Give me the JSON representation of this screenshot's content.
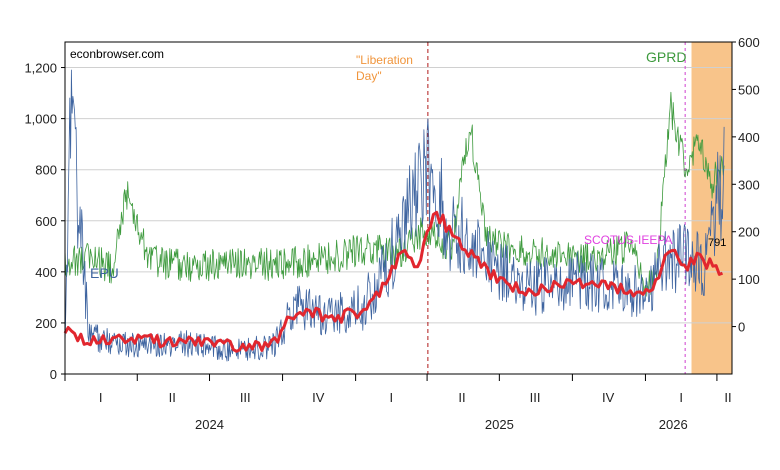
{
  "chart_data": {
    "type": "line",
    "watermark": "econbrowser.com",
    "x_axis": {
      "quarter_ticks": [
        {
          "label": "I",
          "date": "2024-02-15"
        },
        {
          "label": "II",
          "date": "2024-05-15"
        },
        {
          "label": "III",
          "date": "2024-08-15"
        },
        {
          "label": "IV",
          "date": "2024-11-15"
        },
        {
          "label": "I",
          "date": "2025-02-15"
        },
        {
          "label": "II",
          "date": "2025-05-15"
        },
        {
          "label": "III",
          "date": "2025-08-15"
        },
        {
          "label": "IV",
          "date": "2025-11-15"
        },
        {
          "label": "I",
          "date": "2026-02-15"
        },
        {
          "label": "II",
          "date": "2026-04-15"
        }
      ],
      "year_labels": [
        {
          "label": "2024",
          "date": "2024-07-01"
        },
        {
          "label": "2025",
          "date": "2025-07-01"
        },
        {
          "label": "2026",
          "date": "2026-02-05"
        }
      ],
      "range": [
        "2024-01-01",
        "2026-04-20"
      ]
    },
    "left_axis": {
      "ticks": [
        "0",
        "200",
        "400",
        "600",
        "800",
        "1,000",
        "1,200"
      ],
      "range": [
        0,
        1300
      ]
    },
    "right_axis": {
      "ticks": [
        "0",
        "100",
        "200",
        "300",
        "400",
        "500",
        "600"
      ],
      "range": [
        -100,
        600
      ]
    },
    "series": [
      {
        "name": "GPRD",
        "axis": "right",
        "color": "#3d9a3d",
        "points": [
          [
            "2024-01-01",
            130
          ],
          [
            "2024-02-01",
            150
          ],
          [
            "2024-03-01",
            120
          ],
          [
            "2024-03-20",
            290
          ],
          [
            "2024-04-15",
            140
          ],
          [
            "2024-06-01",
            125
          ],
          [
            "2024-08-01",
            135
          ],
          [
            "2024-10-01",
            130
          ],
          [
            "2024-12-01",
            145
          ],
          [
            "2025-01-15",
            165
          ],
          [
            "2025-02-20",
            150
          ],
          [
            "2025-03-30",
            205
          ],
          [
            "2025-05-01",
            165
          ],
          [
            "2025-05-25",
            430
          ],
          [
            "2025-06-15",
            180
          ],
          [
            "2025-09-01",
            150
          ],
          [
            "2025-11-01",
            140
          ],
          [
            "2025-12-15",
            175
          ],
          [
            "2026-01-01",
            90
          ],
          [
            "2026-01-15",
            110
          ],
          [
            "2026-02-01",
            470
          ],
          [
            "2026-02-20",
            340
          ],
          [
            "2026-03-10",
            390
          ],
          [
            "2026-03-25",
            300
          ],
          [
            "2026-04-10",
            340
          ]
        ]
      },
      {
        "name": "EPU",
        "axis": "left",
        "color": "#3e64a0",
        "points": [
          [
            "2024-01-01",
            120
          ],
          [
            "2024-01-08",
            1000
          ],
          [
            "2024-02-01",
            140
          ],
          [
            "2024-04-01",
            110
          ],
          [
            "2024-06-01",
            120
          ],
          [
            "2024-08-01",
            90
          ],
          [
            "2024-09-20",
            110
          ],
          [
            "2024-10-15",
            260
          ],
          [
            "2024-12-01",
            230
          ],
          [
            "2025-01-10",
            260
          ],
          [
            "2025-02-01",
            380
          ],
          [
            "2025-03-01",
            560
          ],
          [
            "2025-04-03",
            820
          ],
          [
            "2025-05-01",
            570
          ],
          [
            "2025-06-15",
            440
          ],
          [
            "2025-08-01",
            330
          ],
          [
            "2025-10-01",
            380
          ],
          [
            "2025-12-01",
            340
          ],
          [
            "2026-01-05",
            300
          ],
          [
            "2026-01-20",
            430
          ],
          [
            "2026-02-15",
            460
          ],
          [
            "2026-03-15",
            420
          ],
          [
            "2026-04-10",
            791
          ]
        ]
      },
      {
        "name": "EPU smoothed",
        "axis": "left",
        "color": "#e1262e",
        "points": [
          [
            "2024-01-01",
            170
          ],
          [
            "2024-02-01",
            125
          ],
          [
            "2024-04-01",
            130
          ],
          [
            "2024-06-01",
            130
          ],
          [
            "2024-08-01",
            110
          ],
          [
            "2024-09-15",
            100
          ],
          [
            "2024-10-20",
            260
          ],
          [
            "2024-12-01",
            220
          ],
          [
            "2025-01-10",
            240
          ],
          [
            "2025-02-01",
            330
          ],
          [
            "2025-03-01",
            490
          ],
          [
            "2025-03-20",
            430
          ],
          [
            "2025-04-10",
            640
          ],
          [
            "2025-05-01",
            560
          ],
          [
            "2025-06-15",
            400
          ],
          [
            "2025-08-01",
            320
          ],
          [
            "2025-10-01",
            360
          ],
          [
            "2025-12-01",
            330
          ],
          [
            "2026-01-10",
            320
          ],
          [
            "2026-02-01",
            490
          ],
          [
            "2026-02-20",
            420
          ],
          [
            "2026-03-10",
            460
          ],
          [
            "2026-04-10",
            380
          ]
        ]
      }
    ],
    "series_labels": {
      "gprd": "GPRD",
      "epu": "EPU"
    },
    "annotations": {
      "liberation_day": {
        "text_line1": "\"Liberation",
        "text_line2": "Day\"",
        "date": "2025-04-02",
        "color": "#f0953c"
      },
      "scotus": {
        "text": "SCOTUS-IEEPA",
        "date": "2026-02-20",
        "color": "#e040e0"
      },
      "last_value": {
        "text": "791",
        "date": "2026-04-10"
      }
    },
    "shaded_region": {
      "start": "2026-02-28",
      "end": "2026-04-20",
      "color": "#f8c48a"
    }
  }
}
